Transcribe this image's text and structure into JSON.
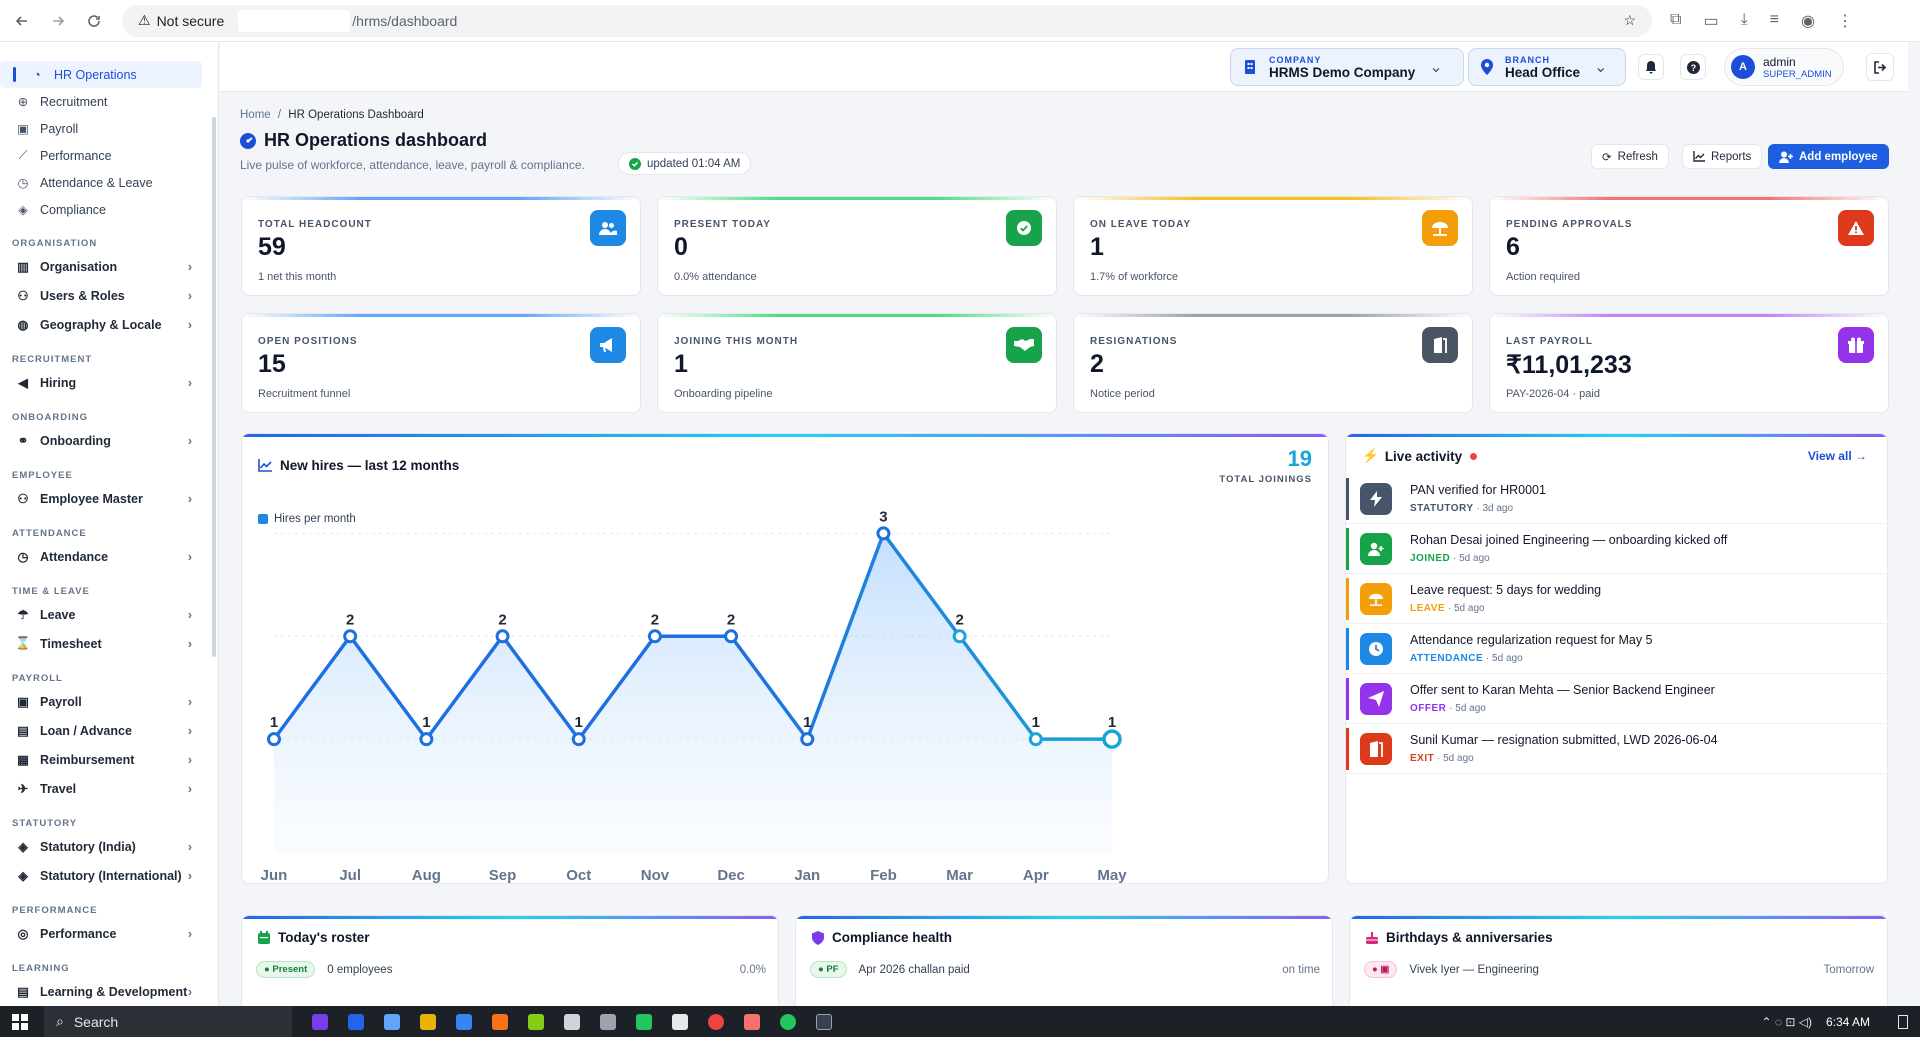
{
  "browser": {
    "security_label": "Not secure",
    "url_path": "/hrms/dashboard"
  },
  "sidebar": {
    "top_items": [
      {
        "label": "HR Operations",
        "icon": "dashboard-icon",
        "active": true
      },
      {
        "label": "Recruitment",
        "icon": "user-plus-icon"
      },
      {
        "label": "Payroll",
        "icon": "wallet-icon"
      },
      {
        "label": "Performance",
        "icon": "chart-line-icon"
      },
      {
        "label": "Attendance & Leave",
        "icon": "clock-icon"
      },
      {
        "label": "Compliance",
        "icon": "shield-icon"
      }
    ],
    "sections": [
      {
        "title": "ORGANISATION",
        "items": [
          {
            "label": "Organisation",
            "icon": "building-icon"
          },
          {
            "label": "Users & Roles",
            "icon": "users-icon"
          },
          {
            "label": "Geography & Locale",
            "icon": "globe-icon"
          }
        ]
      },
      {
        "title": "RECRUITMENT",
        "items": [
          {
            "label": "Hiring",
            "icon": "megaphone-icon"
          }
        ]
      },
      {
        "title": "ONBOARDING",
        "items": [
          {
            "label": "Onboarding",
            "icon": "handshake-icon"
          }
        ]
      },
      {
        "title": "EMPLOYEE",
        "items": [
          {
            "label": "Employee Master",
            "icon": "users-icon"
          }
        ]
      },
      {
        "title": "ATTENDANCE",
        "items": [
          {
            "label": "Attendance",
            "icon": "clock-icon"
          }
        ]
      },
      {
        "title": "TIME & LEAVE",
        "items": [
          {
            "label": "Leave",
            "icon": "umbrella-icon"
          },
          {
            "label": "Timesheet",
            "icon": "hourglass-icon"
          }
        ]
      },
      {
        "title": "PAYROLL",
        "items": [
          {
            "label": "Payroll",
            "icon": "wallet-icon"
          },
          {
            "label": "Loan / Advance",
            "icon": "money-icon"
          },
          {
            "label": "Reimbursement",
            "icon": "receipt-icon"
          },
          {
            "label": "Travel",
            "icon": "plane-icon"
          }
        ]
      },
      {
        "title": "STATUTORY",
        "items": [
          {
            "label": "Statutory (India)",
            "icon": "shield-icon"
          },
          {
            "label": "Statutory (International)",
            "icon": "shield-icon"
          }
        ]
      },
      {
        "title": "PERFORMANCE",
        "items": [
          {
            "label": "Performance",
            "icon": "target-icon"
          }
        ]
      },
      {
        "title": "LEARNING",
        "items": [
          {
            "label": "Learning & Development",
            "icon": "book-icon"
          }
        ]
      }
    ]
  },
  "header": {
    "company_label": "COMPANY",
    "company_value": "HRMS Demo Company",
    "branch_label": "BRANCH",
    "branch_value": "Head Office",
    "user_initial": "A",
    "user_name": "admin",
    "user_role": "SUPER_ADMIN"
  },
  "page": {
    "breadcrumb_home": "Home",
    "breadcrumb_sep": "/",
    "breadcrumb_current": "HR Operations Dashboard",
    "title": "HR Operations dashboard",
    "subtitle": "Live pulse of workforce, attendance, leave, payroll & compliance.",
    "updated": "updated 01:04 AM",
    "refresh_label": "Refresh",
    "reports_label": "Reports",
    "add_employee_label": "Add employee"
  },
  "stats": [
    {
      "label": "TOTAL HEADCOUNT",
      "value": "59",
      "sub": "1 net this month",
      "icon": "users-icon",
      "color": "#1e88e5",
      "bar": "#60a5fa"
    },
    {
      "label": "PRESENT TODAY",
      "value": "0",
      "sub": "0.0% attendance",
      "icon": "check-circle-icon",
      "color": "#16a34a",
      "bar": "#4ade80"
    },
    {
      "label": "ON LEAVE TODAY",
      "value": "1",
      "sub": "1.7% of workforce",
      "icon": "umbrella-icon",
      "color": "#f59e0b",
      "bar": "#fbbf24"
    },
    {
      "label": "PENDING APPROVALS",
      "value": "6",
      "sub": "Action required",
      "icon": "warning-icon",
      "color": "#dc3a1a",
      "bar": "#f87171"
    },
    {
      "label": "OPEN POSITIONS",
      "value": "15",
      "sub": "Recruitment funnel",
      "icon": "megaphone-icon",
      "color": "#1e88e5",
      "bar": "#60a5fa"
    },
    {
      "label": "JOINING THIS MONTH",
      "value": "1",
      "sub": "Onboarding pipeline",
      "icon": "handshake-icon",
      "color": "#16a34a",
      "bar": "#4ade80"
    },
    {
      "label": "RESIGNATIONS",
      "value": "2",
      "sub": "Notice period",
      "icon": "door-icon",
      "color": "#4b5563",
      "bar": "#9ca3af"
    },
    {
      "label": "LAST PAYROLL",
      "value": "₹11,01,233",
      "sub": "PAY-2026-04 · paid",
      "icon": "gift-icon",
      "color": "#9333ea",
      "bar": "#c084fc"
    }
  ],
  "hires_panel": {
    "title": "New hires — last 12 months",
    "total": "19",
    "total_label": "TOTAL JOININGS",
    "legend": "Hires per month"
  },
  "chart_data": {
    "type": "area",
    "categories": [
      "Jun",
      "Jul",
      "Aug",
      "Sep",
      "Oct",
      "Nov",
      "Dec",
      "Jan",
      "Feb",
      "Mar",
      "Apr",
      "May"
    ],
    "series": [
      {
        "name": "Hires per month",
        "values": [
          1,
          2,
          1,
          2,
          1,
          2,
          2,
          1,
          3,
          2,
          1,
          1
        ]
      }
    ],
    "title": "New hires — last 12 months",
    "ylim": [
      0,
      3.5
    ],
    "grid": true,
    "legend": "top-left",
    "line_color": "#1e6fe0",
    "line_color_end": "#1ca3d8"
  },
  "activity": {
    "title": "Live activity",
    "view_all": "View all",
    "items": [
      {
        "text": "PAN verified for HR0001",
        "tag": "STATUTORY",
        "time": "3d ago",
        "icon": "bolt-icon",
        "color": "#475569"
      },
      {
        "text": "Rohan Desai joined Engineering — onboarding kicked off",
        "tag": "JOINED",
        "time": "5d ago",
        "icon": "user-plus-icon",
        "color": "#16a34a"
      },
      {
        "text": "Leave request: 5 days for wedding",
        "tag": "LEAVE",
        "time": "5d ago",
        "icon": "umbrella-icon",
        "color": "#f59e0b"
      },
      {
        "text": "Attendance regularization request for May 5",
        "tag": "ATTENDANCE",
        "time": "5d ago",
        "icon": "clock-icon",
        "color": "#1e88e5"
      },
      {
        "text": "Offer sent to Karan Mehta — Senior Backend Engineer",
        "tag": "OFFER",
        "time": "5d ago",
        "icon": "send-icon",
        "color": "#9333ea"
      },
      {
        "text": "Sunil Kumar — resignation submitted, LWD 2026-06-04",
        "tag": "EXIT",
        "time": "5d ago",
        "icon": "door-icon",
        "color": "#dc3a1a"
      }
    ]
  },
  "roster": {
    "title": "Today's roster",
    "pill": "Present",
    "text": "0 employees",
    "value": "0.0%"
  },
  "compliance": {
    "title": "Compliance health",
    "pill": "PF",
    "text": "Apr 2026 challan paid",
    "value": "on time"
  },
  "birthdays": {
    "title": "Birthdays & anniversaries",
    "text": "Vivek Iyer — Engineering",
    "value": "Tomorrow"
  },
  "taskbar": {
    "search": "Search",
    "time": "6:34 AM"
  }
}
